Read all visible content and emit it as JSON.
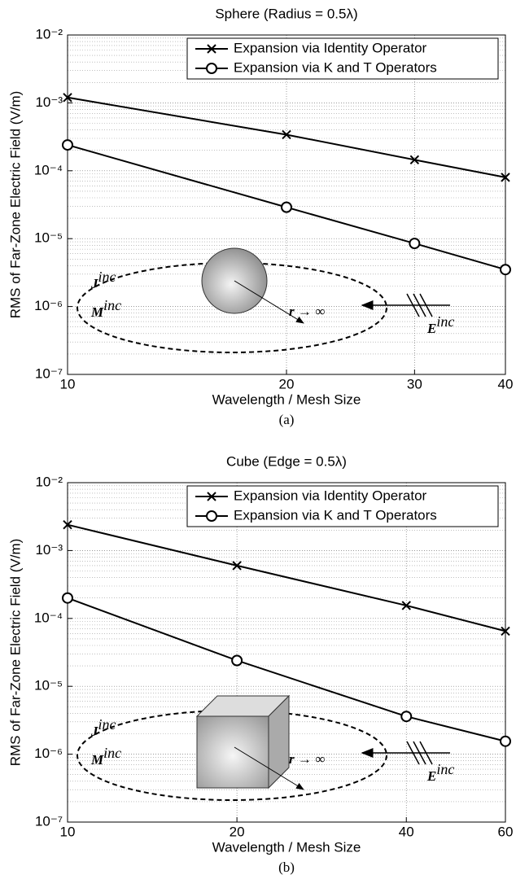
{
  "chart_data": [
    {
      "type": "line",
      "title": "Sphere (Radius = 0.5λ)",
      "xlabel": "Wavelength / Mesh Size",
      "ylabel": "RMS of Far-Zone Electric Field (V/m)",
      "caption": "(a)",
      "x": [
        10,
        20,
        30,
        40
      ],
      "xscale": "log",
      "yscale": "log",
      "grid": true,
      "legend": "upper right",
      "xlim": [
        10,
        40
      ],
      "xticks": [
        10,
        20,
        30,
        40
      ],
      "ylim": [
        1e-07,
        0.01
      ],
      "yticks": [
        {
          "value": 1e-07,
          "label": "10⁻⁷"
        },
        {
          "value": 1e-06,
          "label": "10⁻⁶"
        },
        {
          "value": 1e-05,
          "label": "10⁻⁵"
        },
        {
          "value": 0.0001,
          "label": "10⁻⁴"
        },
        {
          "value": 0.001,
          "label": "10⁻³"
        },
        {
          "value": 0.01,
          "label": "10⁻²"
        }
      ],
      "series": [
        {
          "name": "Expansion via Identity Operator",
          "color": "#000000",
          "marker": "x",
          "values": [
            0.0012,
            0.00034,
            0.000145,
            8e-05
          ]
        },
        {
          "name": "Expansion via K and T Operators",
          "color": "#000000",
          "marker": "o",
          "values": [
            0.00024,
            2.9e-05,
            8.5e-06,
            3.5e-06
          ]
        }
      ],
      "shape": "sphere",
      "annotations": [
        {
          "text": "J",
          "sup": "inc"
        },
        {
          "text": "M",
          "sup": "inc"
        },
        {
          "text": "r → ∞"
        },
        {
          "text": "E",
          "sup": "inc"
        }
      ]
    },
    {
      "type": "line",
      "title": "Cube (Edge = 0.5λ)",
      "xlabel": "Wavelength / Mesh Size",
      "ylabel": "RMS of Far-Zone Electric Field (V/m)",
      "caption": "(b)",
      "x": [
        10,
        20,
        40,
        60
      ],
      "xscale": "log",
      "yscale": "log",
      "grid": true,
      "legend": "upper right",
      "xlim": [
        10,
        60
      ],
      "xticks": [
        10,
        20,
        40,
        60
      ],
      "ylim": [
        1e-07,
        0.01
      ],
      "yticks": [
        {
          "value": 1e-07,
          "label": "10⁻⁷"
        },
        {
          "value": 1e-06,
          "label": "10⁻⁶"
        },
        {
          "value": 1e-05,
          "label": "10⁻⁵"
        },
        {
          "value": 0.0001,
          "label": "10⁻⁴"
        },
        {
          "value": 0.001,
          "label": "10⁻³"
        },
        {
          "value": 0.01,
          "label": "10⁻²"
        }
      ],
      "series": [
        {
          "name": "Expansion via Identity Operator",
          "color": "#000000",
          "marker": "x",
          "values": [
            0.0024,
            0.0006,
            0.000155,
            6.5e-05
          ]
        },
        {
          "name": "Expansion via K and T Operators",
          "color": "#000000",
          "marker": "o",
          "values": [
            0.0002,
            2.4e-05,
            3.6e-06,
            1.55e-06
          ]
        }
      ],
      "shape": "cube",
      "annotations": [
        {
          "text": "J",
          "sup": "inc"
        },
        {
          "text": "M",
          "sup": "inc"
        },
        {
          "text": "r → ∞"
        },
        {
          "text": "E",
          "sup": "inc"
        }
      ]
    }
  ]
}
